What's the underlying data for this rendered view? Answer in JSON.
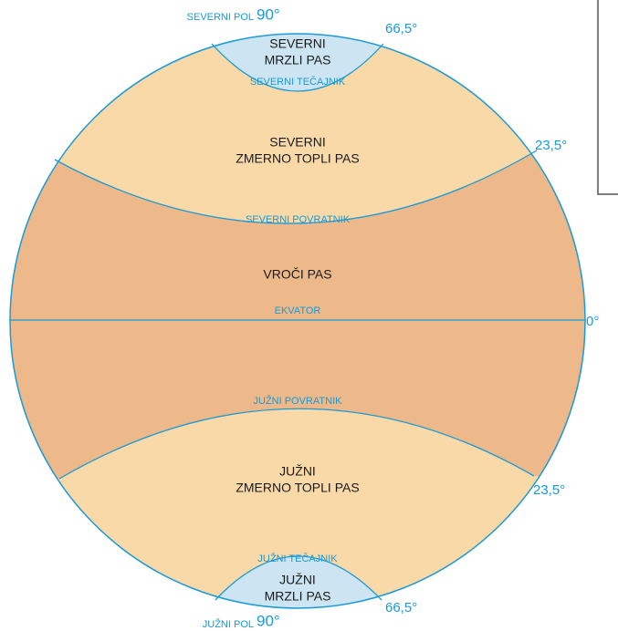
{
  "labels": {
    "north_pole": "SEVERNI POL",
    "north_pole_deg": "90°",
    "north_arctic_deg": "66,5°",
    "north_cold_zone": [
      "SEVERNI",
      "MRZLI PAS"
    ],
    "arctic_circle": "SEVERNI TEČAJNIK",
    "north_temperate_zone": [
      "SEVERNI",
      "ZMERNO TOPLI PAS"
    ],
    "north_tropic_deg": "23,5°",
    "tropic_cancer": "SEVERNI POVRATNIK",
    "hot_zone": "VROČI PAS",
    "equator": "EKVATOR",
    "equator_deg": "0°",
    "tropic_capricorn": "JUŽNI POVRATNIK",
    "south_temperate_zone": [
      "JUŽNI",
      "ZMERNO TOPLI PAS"
    ],
    "south_tropic_deg": "23,5°",
    "antarctic_circle": "JUŽNI TEČAJNIK",
    "south_cold_zone": [
      "JUŽNI",
      "MRZLI PAS"
    ],
    "south_antarctic_deg": "66,5°",
    "south_pole": "JUŽNI POL",
    "south_pole_deg": "90°"
  }
}
